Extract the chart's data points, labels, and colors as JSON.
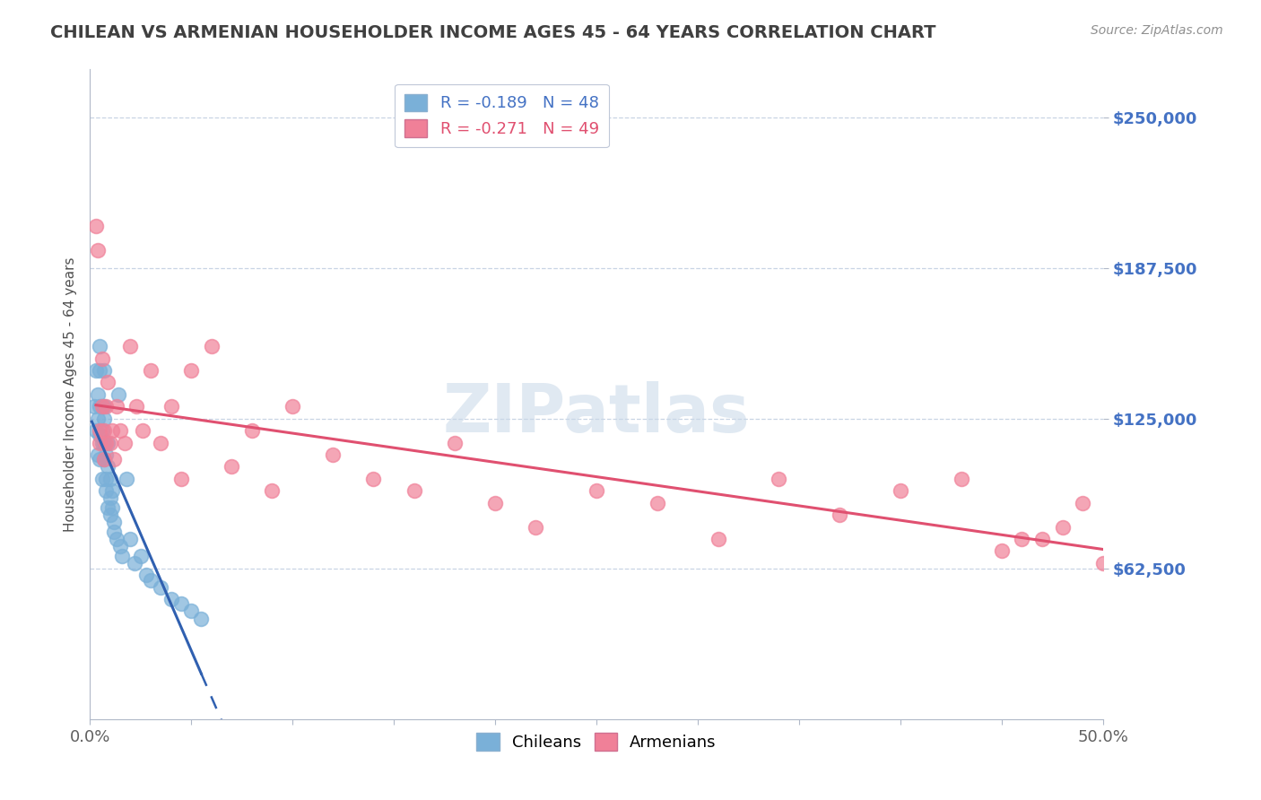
{
  "title": "CHILEAN VS ARMENIAN HOUSEHOLDER INCOME AGES 45 - 64 YEARS CORRELATION CHART",
  "source_text": "Source: ZipAtlas.com",
  "ylabel": "Householder Income Ages 45 - 64 years",
  "xlim": [
    0.0,
    0.5
  ],
  "ylim": [
    0,
    270000
  ],
  "yticks": [
    62500,
    125000,
    187500,
    250000
  ],
  "ytick_labels": [
    "$62,500",
    "$125,000",
    "$187,500",
    "$250,000"
  ],
  "xticks": [
    0.0,
    0.05,
    0.1,
    0.15,
    0.2,
    0.25,
    0.3,
    0.35,
    0.4,
    0.45,
    0.5
  ],
  "xtick_labels": [
    "0.0%",
    "",
    "",
    "",
    "",
    "",
    "",
    "",
    "",
    "",
    "50.0%"
  ],
  "legend_entries": [
    {
      "label": "R = -0.189   N = 48",
      "color": "#a8c4e0"
    },
    {
      "label": "R = -0.271   N = 49",
      "color": "#f4a0b0"
    }
  ],
  "legend_bottom": [
    "Chileans",
    "Armenians"
  ],
  "chilean_color": "#7ab0d8",
  "armenian_color": "#f08098",
  "watermark": "ZIPatlas",
  "watermark_color": "#c8d8e8",
  "title_color": "#404040",
  "ytick_color": "#4472c4",
  "xtick_color": "#606060",
  "grid_color": "#c8d4e4",
  "blue_line_color": "#3060b0",
  "pink_line_color": "#e05070",
  "chilean_x": [
    0.002,
    0.003,
    0.003,
    0.004,
    0.004,
    0.004,
    0.005,
    0.005,
    0.005,
    0.005,
    0.005,
    0.006,
    0.006,
    0.006,
    0.006,
    0.007,
    0.007,
    0.007,
    0.007,
    0.007,
    0.008,
    0.008,
    0.008,
    0.009,
    0.009,
    0.009,
    0.01,
    0.01,
    0.01,
    0.011,
    0.011,
    0.012,
    0.012,
    0.013,
    0.014,
    0.015,
    0.016,
    0.018,
    0.02,
    0.022,
    0.025,
    0.028,
    0.03,
    0.035,
    0.04,
    0.045,
    0.05,
    0.055
  ],
  "chilean_y": [
    130000,
    145000,
    120000,
    135000,
    110000,
    125000,
    155000,
    130000,
    118000,
    145000,
    108000,
    115000,
    130000,
    100000,
    120000,
    145000,
    130000,
    115000,
    108000,
    125000,
    95000,
    110000,
    100000,
    88000,
    105000,
    115000,
    92000,
    85000,
    100000,
    88000,
    95000,
    82000,
    78000,
    75000,
    135000,
    72000,
    68000,
    100000,
    75000,
    65000,
    68000,
    60000,
    58000,
    55000,
    50000,
    48000,
    45000,
    42000
  ],
  "armenian_x": [
    0.003,
    0.004,
    0.005,
    0.005,
    0.006,
    0.006,
    0.007,
    0.007,
    0.008,
    0.008,
    0.009,
    0.01,
    0.011,
    0.012,
    0.013,
    0.015,
    0.017,
    0.02,
    0.023,
    0.026,
    0.03,
    0.035,
    0.04,
    0.045,
    0.05,
    0.06,
    0.07,
    0.08,
    0.09,
    0.1,
    0.12,
    0.14,
    0.16,
    0.18,
    0.2,
    0.22,
    0.25,
    0.28,
    0.31,
    0.34,
    0.37,
    0.4,
    0.43,
    0.46,
    0.49,
    0.5,
    0.48,
    0.47,
    0.45
  ],
  "armenian_y": [
    205000,
    195000,
    115000,
    120000,
    150000,
    130000,
    108000,
    120000,
    130000,
    115000,
    140000,
    115000,
    120000,
    108000,
    130000,
    120000,
    115000,
    155000,
    130000,
    120000,
    145000,
    115000,
    130000,
    100000,
    145000,
    155000,
    105000,
    120000,
    95000,
    130000,
    110000,
    100000,
    95000,
    115000,
    90000,
    80000,
    95000,
    90000,
    75000,
    100000,
    85000,
    95000,
    100000,
    75000,
    90000,
    65000,
    80000,
    75000,
    70000
  ]
}
